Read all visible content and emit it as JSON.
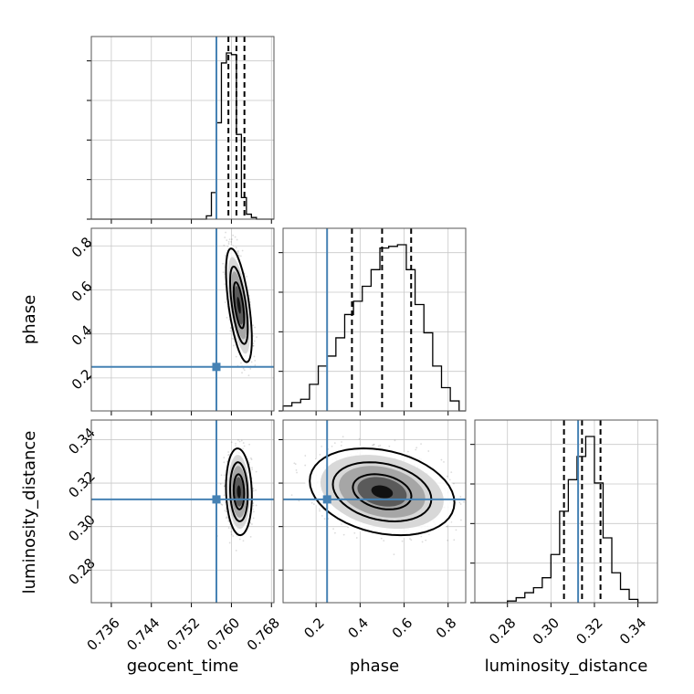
{
  "chart_data": {
    "type": "corner",
    "parameters": [
      {
        "key": "geocent_time",
        "label": "geocent_time",
        "range": [
          0.732,
          0.7685
        ],
        "ticks": [
          0.736,
          0.744,
          0.752,
          0.76,
          0.768
        ],
        "tick_labels": [
          "0.736",
          "0.744",
          "0.752",
          "0.760",
          "0.768"
        ],
        "truth": 0.757,
        "quantiles": [
          0.7594,
          0.761,
          0.7626
        ],
        "hist": {
          "edges": [
            0.755,
            0.756,
            0.757,
            0.758,
            0.759,
            0.76,
            0.761,
            0.762,
            0.763,
            0.764,
            0.765,
            0.766,
            0.767
          ],
          "counts": [
            0.02,
            0.16,
            0.58,
            0.94,
            1.0,
            0.99,
            0.51,
            0.13,
            0.03,
            0.01,
            0,
            0
          ]
        }
      },
      {
        "key": "phase",
        "label": "phase",
        "range": [
          0.05,
          0.88
        ],
        "ticks": [
          0.2,
          0.4,
          0.6,
          0.8
        ],
        "tick_labels": [
          "0.2",
          "0.4",
          "0.6",
          "0.8"
        ],
        "truth": 0.25,
        "quantiles": [
          0.363,
          0.5,
          0.632
        ],
        "hist": {
          "edges": [
            0.05,
            0.09,
            0.13,
            0.17,
            0.21,
            0.25,
            0.29,
            0.33,
            0.37,
            0.41,
            0.45,
            0.49,
            0.53,
            0.57,
            0.61,
            0.65,
            0.69,
            0.73,
            0.77,
            0.81,
            0.85
          ],
          "counts": [
            0.03,
            0.05,
            0.07,
            0.16,
            0.27,
            0.33,
            0.44,
            0.58,
            0.66,
            0.75,
            0.85,
            0.98,
            0.99,
            1.0,
            0.85,
            0.64,
            0.47,
            0.27,
            0.14,
            0.06
          ]
        }
      },
      {
        "key": "luminosity_distance",
        "label": "luminosity_distance",
        "range": [
          0.265,
          0.349
        ],
        "ticks": [
          0.28,
          0.3,
          0.32,
          0.34
        ],
        "tick_labels": [
          "0.28",
          "0.30",
          "0.32",
          "0.34"
        ],
        "truth": 0.3125,
        "quantiles": [
          0.306,
          0.3143,
          0.3228
        ],
        "hist": {
          "edges": [
            0.28,
            0.284,
            0.288,
            0.292,
            0.296,
            0.3,
            0.304,
            0.308,
            0.312,
            0.316,
            0.32,
            0.324,
            0.328,
            0.332,
            0.336,
            0.34
          ],
          "counts": [
            0.01,
            0.03,
            0.06,
            0.09,
            0.15,
            0.29,
            0.55,
            0.74,
            0.88,
            1.0,
            0.72,
            0.39,
            0.18,
            0.08,
            0.02
          ]
        }
      }
    ],
    "pairs": [
      {
        "x": "geocent_time",
        "y": "phase",
        "center": [
          0.7615,
          0.53
        ],
        "spread": [
          0.0011,
          0.11
        ],
        "correlation": -0.6
      },
      {
        "x": "geocent_time",
        "y": "luminosity_distance",
        "center": [
          0.7615,
          0.316
        ],
        "spread": [
          0.0011,
          0.0085
        ],
        "correlation": -0.1
      },
      {
        "x": "phase",
        "y": "luminosity_distance",
        "center": [
          0.5,
          0.316
        ],
        "spread": [
          0.14,
          0.0085
        ],
        "correlation": -0.25
      }
    ],
    "contour_levels": [
      "inner",
      "middle",
      "outer"
    ],
    "colors": {
      "truth": "#4682b4",
      "histogram": "#000000",
      "density": "#000000"
    },
    "grid": true,
    "legend": "none"
  }
}
